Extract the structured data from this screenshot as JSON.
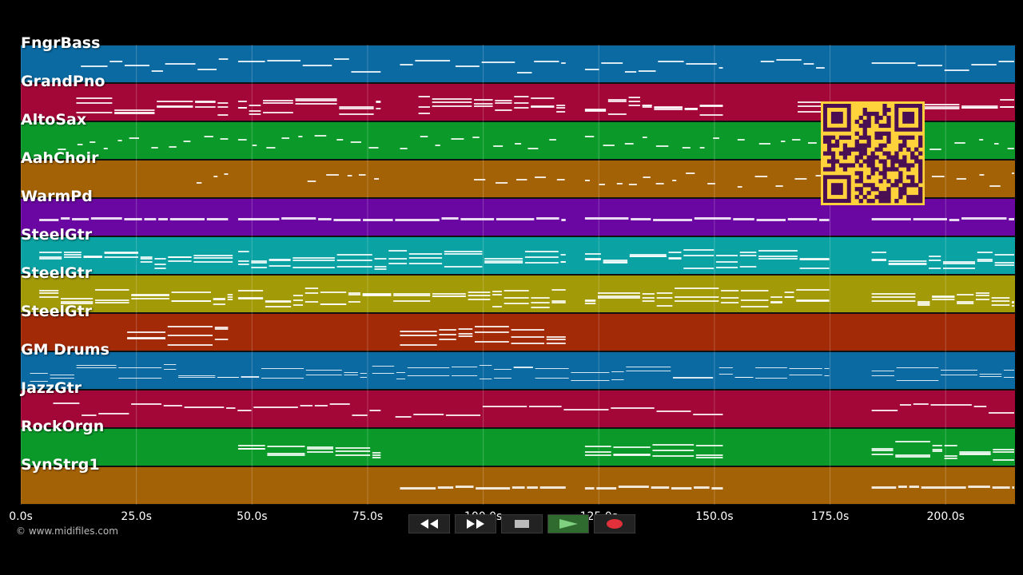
{
  "copyright": "© www.midifiles.com",
  "tracks": [
    {
      "label": "FngrBass",
      "color": "#0b6aa2"
    },
    {
      "label": "GrandPno",
      "color": "#a20737"
    },
    {
      "label": "AltoSax",
      "color": "#0b9a2a"
    },
    {
      "label": "AahChoir",
      "color": "#a46206"
    },
    {
      "label": "WarmPd",
      "color": "#6a07a2"
    },
    {
      "label": "SteelGtr",
      "color": "#0aa2a2"
    },
    {
      "label": "SteelGtr",
      "color": "#a29a06"
    },
    {
      "label": "SteelGtr",
      "color": "#a22a06"
    },
    {
      "label": "GM Drums",
      "color": "#0b6aa2"
    },
    {
      "label": "JazzGtr",
      "color": "#a20737"
    },
    {
      "label": "RockOrgn",
      "color": "#0b9a2a"
    },
    {
      "label": "SynStrg1",
      "color": "#a46206"
    }
  ],
  "time_axis": {
    "max_seconds": 215,
    "ticks": [
      {
        "value": 0,
        "label": "0.0s"
      },
      {
        "value": 25,
        "label": "25.0s"
      },
      {
        "value": 50,
        "label": "50.0s"
      },
      {
        "value": 75,
        "label": "75.0s"
      },
      {
        "value": 100,
        "label": "100.0s"
      },
      {
        "value": 125,
        "label": "125.0s"
      },
      {
        "value": 150,
        "label": "150.0s"
      },
      {
        "value": 175,
        "label": "175.0s"
      },
      {
        "value": 200,
        "label": "200.0s"
      }
    ]
  },
  "controls": [
    {
      "name": "rewind-button",
      "icon": "rewind-icon"
    },
    {
      "name": "fast-forward-button",
      "icon": "fast-forward-icon"
    },
    {
      "name": "stop-button",
      "icon": "stop-icon"
    },
    {
      "name": "play-button",
      "icon": "play-icon"
    },
    {
      "name": "record-button",
      "icon": "record-icon"
    }
  ],
  "qr_code": {
    "icon": "qr-code-icon",
    "color": "#ffd23c"
  }
}
